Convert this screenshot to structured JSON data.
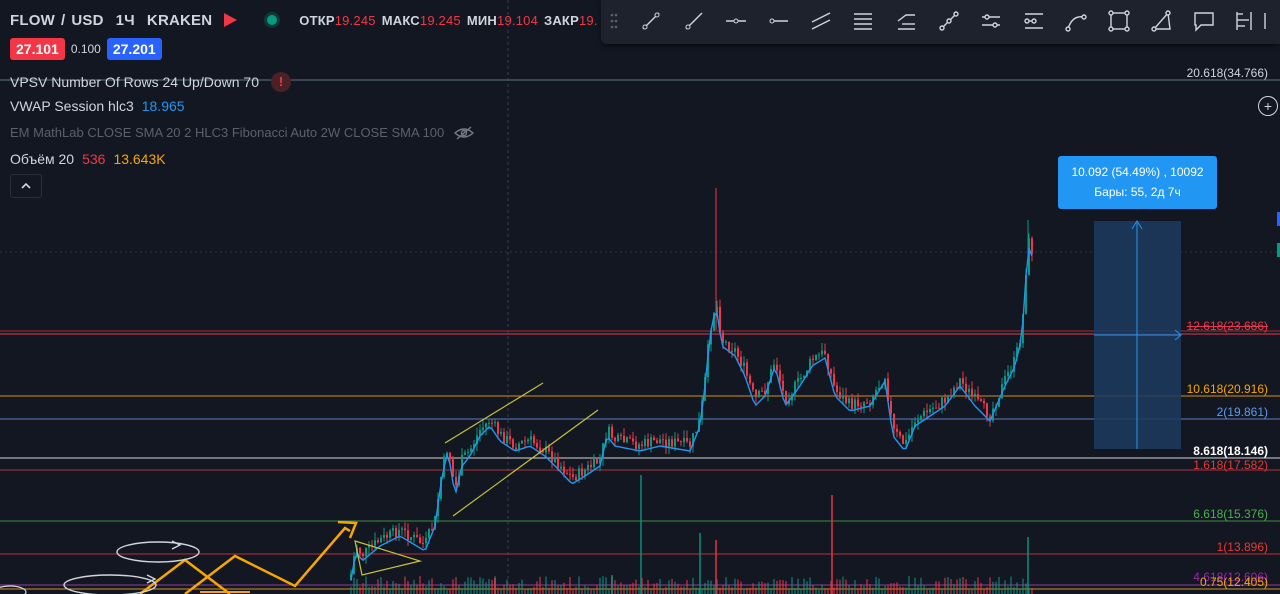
{
  "header": {
    "symbol": "FLOW",
    "currency": "USD",
    "interval": "1Ч",
    "exchange": "KRAKEN",
    "ohlc": [
      {
        "label": "ОТКР",
        "value": "19.245"
      },
      {
        "label": "МАКС",
        "value": "19.245"
      },
      {
        "label": "МИН",
        "value": "19.104"
      },
      {
        "label": "ЗАКР",
        "value": "19."
      }
    ]
  },
  "quote": {
    "bid": "27.101",
    "spread": "0.100",
    "ask": "27.201"
  },
  "indicators": [
    {
      "name": "VPSV Number Of Rows 24 Up/Down 70",
      "value": "",
      "icon": "warning-icon"
    },
    {
      "name": "VWAP Session hlc3",
      "value": "18.965"
    },
    {
      "name": "EM MathLab CLOSE SMA 20 2 HLC3 Fibonacci Auto 2W CLOSE SMA 100",
      "value": "",
      "icon": "eye-crossed-icon"
    },
    {
      "name": "Объём 20",
      "value": "536",
      "value2": "13.643K"
    }
  ],
  "toolbar_icons": [
    "drag-handle-icon",
    "trend-line-icon",
    "ray-icon",
    "horizontal-line-icon",
    "horizontal-ray-icon",
    "parallel-channel-icon",
    "fib-retracement-icon",
    "fib-extension-icon",
    "trend-angle-icon",
    "date-price-range-icon",
    "ruler-icon",
    "arc-icon",
    "rectangle-icon",
    "path-icon",
    "comment-icon",
    "long-position-icon",
    "more-icon"
  ],
  "measure_tooltip": {
    "line1": "10.092 (54.49%) , 10092",
    "line2": "Бары: 55, 2д 7ч"
  },
  "fib_levels": [
    {
      "label": "20.618(34.766)",
      "color": "#d1d4dc",
      "level": 34.766
    },
    {
      "label": "12.618(23.686)",
      "color": "#f23645",
      "level": 23.686
    },
    {
      "label": "10.618(20.916)",
      "color": "#f7a600",
      "level": 20.916
    },
    {
      "label": "2(19.861)",
      "color": "#5b9cf6",
      "level": 19.861
    },
    {
      "label": "8.618(18.146)",
      "color": "#ffffff",
      "level": 18.146
    },
    {
      "label": "1.618(17.582)",
      "color": "#e53935",
      "level": 17.582
    },
    {
      "label": "6.618(15.376)",
      "color": "#4caf50",
      "level": 15.376
    },
    {
      "label": "1(13.896)",
      "color": "#e53935",
      "level": 13.896
    },
    {
      "label": "0.75(12.405)",
      "color": "#f7a600",
      "level": 12.405
    },
    {
      "label": "4.618(12.606)",
      "color": "#9c27b0",
      "level": 12.606
    }
  ],
  "colors": {
    "background": "#131722",
    "up": "#089981",
    "down": "#f23645",
    "accent": "#2962ff",
    "measure": "#2196f3",
    "drawing": "#f7a600"
  }
}
